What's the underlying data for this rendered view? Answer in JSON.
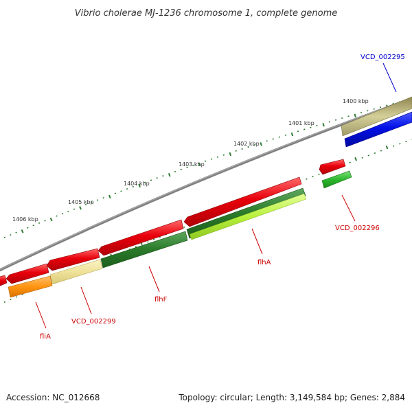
{
  "title": "Vibrio cholerae MJ-1236 chromosome 1, complete genome",
  "footer": {
    "accession": "Accession: NC_012668",
    "stats": "Topology: circular; Length: 3,149,584 bp; Genes: 2,884"
  },
  "colors": {
    "background": "#ffffff",
    "backbone": "#808080",
    "tick": "#2e7d32",
    "feature_red": "#e8000b",
    "label_red": "#cc0000",
    "label_blue": "#0000cc"
  },
  "ticks": [
    {
      "label": "1400 kbp"
    },
    {
      "label": "1401 kbp"
    },
    {
      "label": "1402 kbp"
    },
    {
      "label": "1403 kbp"
    },
    {
      "label": "1404 kbp"
    },
    {
      "label": "1405 kbp"
    },
    {
      "label": "1406 kbp"
    }
  ],
  "gene_labels": [
    {
      "text": "VCD_002295",
      "color": "#0000cc"
    },
    {
      "text": "VCD_002296",
      "color": "#cc0000"
    },
    {
      "text": "flhA",
      "color": "#cc0000"
    },
    {
      "text": "flhF",
      "color": "#cc0000"
    },
    {
      "text": "VCD_002299",
      "color": "#cc0000"
    },
    {
      "text": "fliA",
      "color": "#cc0000"
    }
  ]
}
